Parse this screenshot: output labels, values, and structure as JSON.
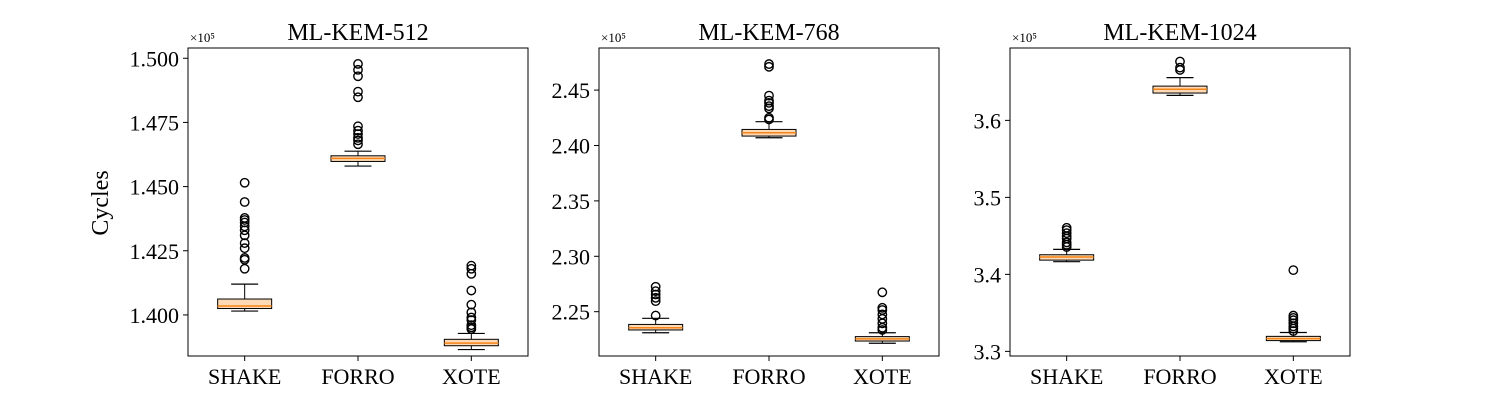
{
  "chart_data": {
    "type": "boxplot",
    "ylabel": "Cycles",
    "categories": [
      "SHAKE",
      "FORRO",
      "XOTE"
    ],
    "box_fill": "#fdd9b5",
    "median_color": "#f58518",
    "panels": [
      {
        "title": "ML-KEM-512",
        "exponent": "×10⁵",
        "ylim": [
          1.384,
          1.504
        ],
        "yticks": [
          1.4,
          1.425,
          1.45,
          1.475,
          1.5
        ],
        "ytick_labels": [
          "1.400",
          "1.425",
          "1.450",
          "1.475",
          "1.500"
        ],
        "boxes": [
          {
            "category": "SHAKE",
            "whislo": 1.4015,
            "q1": 1.4025,
            "med": 1.4035,
            "q3": 1.4062,
            "whishi": 1.412,
            "fliers": [
              1.418,
              1.4215,
              1.4222,
              1.426,
              1.428,
              1.431,
              1.433,
              1.4345,
              1.436,
              1.437,
              1.4378,
              1.444,
              1.4515
            ]
          },
          {
            "category": "FORRO",
            "whislo": 1.458,
            "q1": 1.4598,
            "med": 1.461,
            "q3": 1.462,
            "whishi": 1.4638,
            "fliers": [
              1.4665,
              1.468,
              1.469,
              1.4705,
              1.4718,
              1.4735,
              1.4848,
              1.487,
              1.493,
              1.4955,
              1.4978
            ]
          },
          {
            "category": "XOTE",
            "whislo": 1.3865,
            "q1": 1.388,
            "med": 1.389,
            "q3": 1.3905,
            "whishi": 1.3928,
            "fliers": [
              1.3945,
              1.3952,
              1.396,
              1.398,
              1.399,
              1.401,
              1.404,
              1.4095,
              1.416,
              1.418,
              1.4192
            ]
          }
        ]
      },
      {
        "title": "ML-KEM-768",
        "exponent": "×10⁵",
        "ylim": [
          2.21,
          2.488
        ],
        "yticks": [
          2.25,
          2.3,
          2.35,
          2.4,
          2.45
        ],
        "ytick_labels": [
          "2.25",
          "2.30",
          "2.35",
          "2.40",
          "2.45"
        ],
        "boxes": [
          {
            "category": "SHAKE",
            "whislo": 2.231,
            "q1": 2.2335,
            "med": 2.2355,
            "q3": 2.2385,
            "whishi": 2.244,
            "fliers": [
              2.2465,
              2.2595,
              2.2625,
              2.2655,
              2.2685,
              2.2725
            ]
          },
          {
            "category": "FORRO",
            "whislo": 2.407,
            "q1": 2.4085,
            "med": 2.4115,
            "q3": 2.4145,
            "whishi": 2.4215,
            "fliers": [
              2.4235,
              2.425,
              2.4335,
              2.4355,
              2.4385,
              2.4405,
              2.445,
              2.471,
              2.4735
            ]
          },
          {
            "category": "XOTE",
            "whislo": 2.2215,
            "q1": 2.2235,
            "med": 2.2255,
            "q3": 2.2275,
            "whishi": 2.231,
            "fliers": [
              2.2335,
              2.2355,
              2.2395,
              2.2435,
              2.2475,
              2.2515,
              2.2535,
              2.2675
            ]
          }
        ]
      },
      {
        "title": "ML-KEM-1024",
        "exponent": "×10⁵",
        "ylim": [
          3.294,
          3.694
        ],
        "yticks": [
          3.3,
          3.4,
          3.5,
          3.6
        ],
        "ytick_labels": [
          "3.3",
          "3.4",
          "3.5",
          "3.6"
        ],
        "boxes": [
          {
            "category": "SHAKE",
            "whislo": 3.4165,
            "q1": 3.4185,
            "med": 3.4225,
            "q3": 3.4255,
            "whishi": 3.4325,
            "fliers": [
              3.4355,
              3.4385,
              3.4415,
              3.4465,
              3.4495,
              3.4535,
              3.4575,
              3.4605
            ]
          },
          {
            "category": "FORRO",
            "whislo": 3.6325,
            "q1": 3.6355,
            "med": 3.6405,
            "q3": 3.6445,
            "whishi": 3.6555,
            "fliers": [
              3.6655,
              3.6685,
              3.6765
            ]
          },
          {
            "category": "XOTE",
            "whislo": 3.3125,
            "q1": 3.314,
            "med": 3.3165,
            "q3": 3.3195,
            "whishi": 3.3245,
            "fliers": [
              3.3265,
              3.3295,
              3.3325,
              3.3365,
              3.3405,
              3.3435,
              3.3465,
              3.4055
            ]
          }
        ]
      }
    ]
  }
}
